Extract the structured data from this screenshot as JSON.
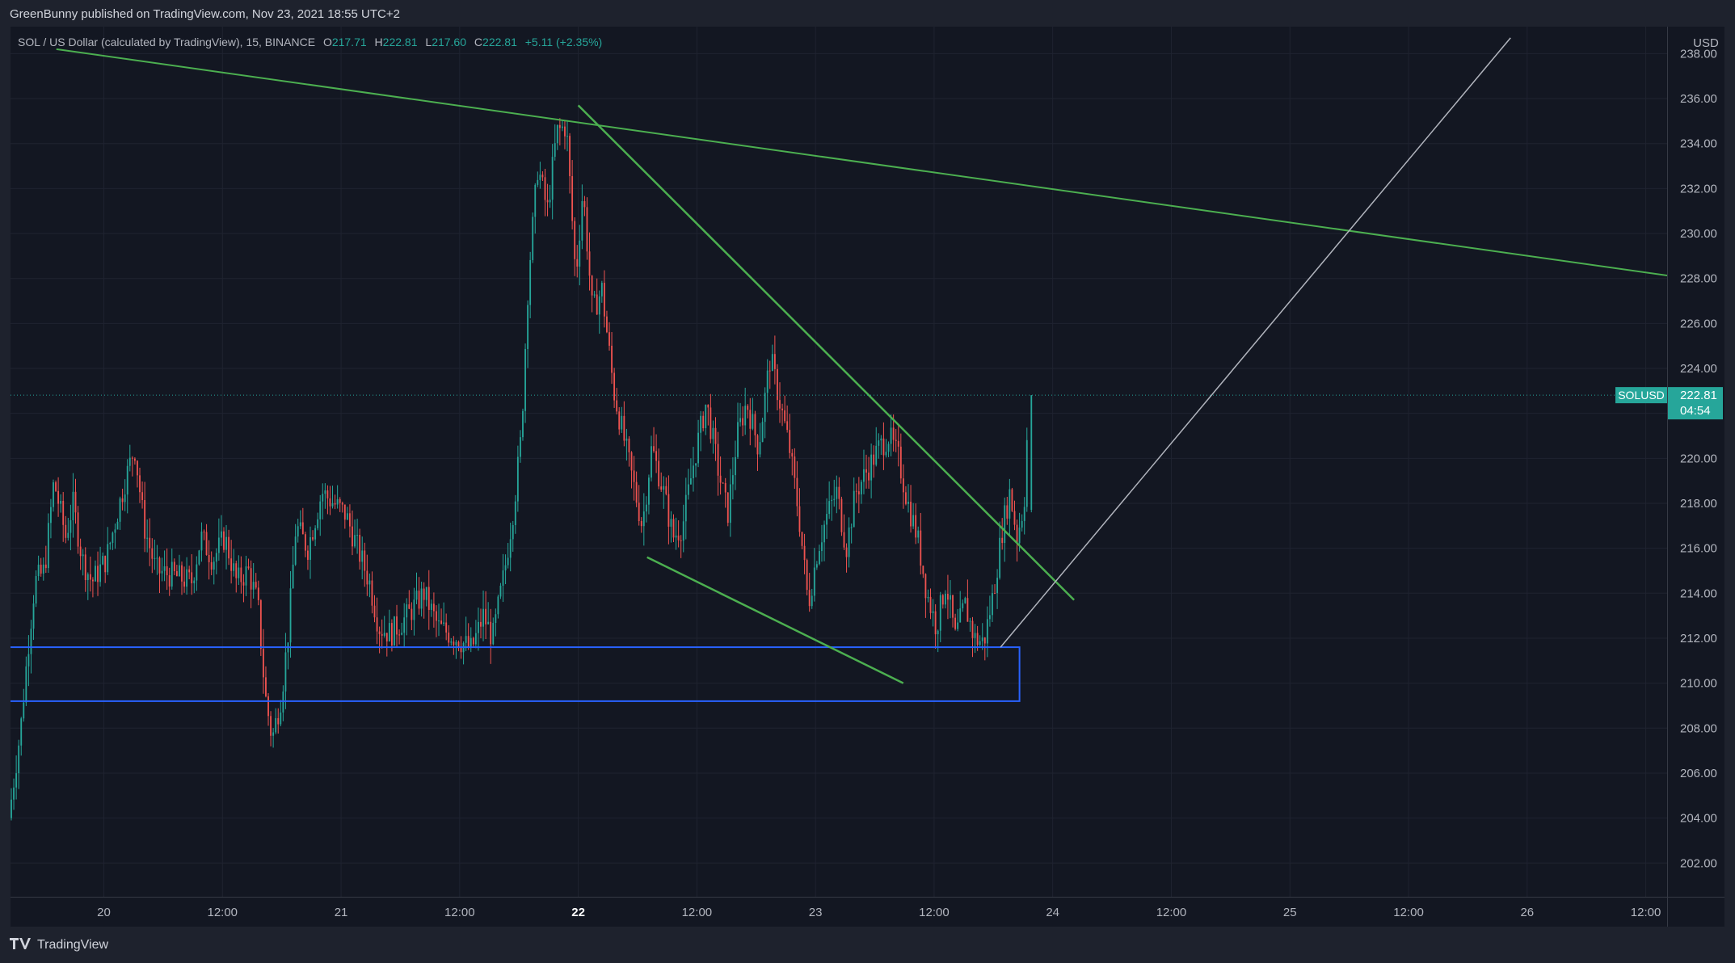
{
  "header": {
    "published_line": "GreenBunny published on TradingView.com, Nov 23, 2021 18:55 UTC+2"
  },
  "legend": {
    "symbol_text": "SOL / US Dollar (calculated by TradingView), 15, BINANCE",
    "open_label": "O",
    "open": "217.71",
    "high_label": "H",
    "high": "222.81",
    "low_label": "L",
    "low": "217.60",
    "close_label": "C",
    "close": "222.81",
    "change": "+5.11 (+2.35%)"
  },
  "footer": {
    "brand_icon": "tradingview-logo-icon",
    "brand": "TradingView"
  },
  "colors": {
    "up": "#26a69a",
    "down": "#ef5350",
    "trendline": "#4caf50",
    "support_box": "#2962ff",
    "projection": "#b2b5be",
    "background": "#131722"
  },
  "chart_data": {
    "type": "candlestick",
    "symbol": "SOLUSD",
    "currency": "USD",
    "interval": "15",
    "y_range": [
      200.5,
      239.2
    ],
    "y_ticks": [
      "238.00",
      "236.00",
      "234.00",
      "232.00",
      "230.00",
      "228.00",
      "226.00",
      "224.00",
      "222.00",
      "220.00",
      "218.00",
      "216.00",
      "214.00",
      "212.00",
      "210.00",
      "208.00",
      "206.00",
      "204.00",
      "202.00"
    ],
    "x_ticks": [
      {
        "label": "20",
        "day": 20.0,
        "bold": false
      },
      {
        "label": "12:00",
        "day": 20.5,
        "bold": false
      },
      {
        "label": "21",
        "day": 21.0,
        "bold": false
      },
      {
        "label": "12:00",
        "day": 21.5,
        "bold": false
      },
      {
        "label": "22",
        "day": 22.0,
        "bold": true
      },
      {
        "label": "12:00",
        "day": 22.5,
        "bold": false
      },
      {
        "label": "23",
        "day": 23.0,
        "bold": false
      },
      {
        "label": "12:00",
        "day": 23.5,
        "bold": false
      },
      {
        "label": "24",
        "day": 24.0,
        "bold": false
      },
      {
        "label": "12:00",
        "day": 24.5,
        "bold": false
      },
      {
        "label": "25",
        "day": 25.0,
        "bold": false
      },
      {
        "label": "12:00",
        "day": 25.5,
        "bold": false
      },
      {
        "label": "26",
        "day": 26.0,
        "bold": false
      },
      {
        "label": "12:00",
        "day": 26.5,
        "bold": false
      }
    ],
    "x_range_days": [
      19.61,
      26.59
    ],
    "price_keypoints": [
      {
        "day": 19.61,
        "price": 204.0
      },
      {
        "day": 19.66,
        "price": 208.0
      },
      {
        "day": 19.69,
        "price": 211.5
      },
      {
        "day": 19.72,
        "price": 214.5
      },
      {
        "day": 19.76,
        "price": 215.0
      },
      {
        "day": 19.8,
        "price": 219.0
      },
      {
        "day": 19.85,
        "price": 216.5
      },
      {
        "day": 19.88,
        "price": 218.0
      },
      {
        "day": 19.92,
        "price": 215.5
      },
      {
        "day": 19.96,
        "price": 214.5
      },
      {
        "day": 20.02,
        "price": 215.5
      },
      {
        "day": 20.1,
        "price": 219.0
      },
      {
        "day": 20.14,
        "price": 220.5
      },
      {
        "day": 20.18,
        "price": 217.0
      },
      {
        "day": 20.23,
        "price": 215.0
      },
      {
        "day": 20.3,
        "price": 214.8
      },
      {
        "day": 20.38,
        "price": 214.5
      },
      {
        "day": 20.42,
        "price": 216.5
      },
      {
        "day": 20.47,
        "price": 215.5
      },
      {
        "day": 20.52,
        "price": 216.5
      },
      {
        "day": 20.57,
        "price": 214.5
      },
      {
        "day": 20.62,
        "price": 215.0
      },
      {
        "day": 20.66,
        "price": 213.5
      },
      {
        "day": 20.69,
        "price": 209.5
      },
      {
        "day": 20.72,
        "price": 207.5
      },
      {
        "day": 20.76,
        "price": 209.5
      },
      {
        "day": 20.79,
        "price": 212.5
      },
      {
        "day": 20.82,
        "price": 217.0
      },
      {
        "day": 20.87,
        "price": 216.0
      },
      {
        "day": 20.93,
        "price": 218.5
      },
      {
        "day": 20.98,
        "price": 218.0
      },
      {
        "day": 21.03,
        "price": 217.5
      },
      {
        "day": 21.08,
        "price": 216.0
      },
      {
        "day": 21.13,
        "price": 214.5
      },
      {
        "day": 21.17,
        "price": 212.5
      },
      {
        "day": 21.22,
        "price": 212.2
      },
      {
        "day": 21.29,
        "price": 213.0
      },
      {
        "day": 21.36,
        "price": 214.0
      },
      {
        "day": 21.42,
        "price": 212.5
      },
      {
        "day": 21.5,
        "price": 212.0
      },
      {
        "day": 21.56,
        "price": 211.5
      },
      {
        "day": 21.61,
        "price": 213.0
      },
      {
        "day": 21.65,
        "price": 212.0
      },
      {
        "day": 21.7,
        "price": 215.0
      },
      {
        "day": 21.74,
        "price": 218.0
      },
      {
        "day": 21.77,
        "price": 221.0
      },
      {
        "day": 21.8,
        "price": 228.0
      },
      {
        "day": 21.84,
        "price": 233.0
      },
      {
        "day": 21.88,
        "price": 231.0
      },
      {
        "day": 21.92,
        "price": 234.5
      },
      {
        "day": 21.96,
        "price": 234.8
      },
      {
        "day": 22.0,
        "price": 228.0
      },
      {
        "day": 22.03,
        "price": 232.0
      },
      {
        "day": 22.07,
        "price": 226.5
      },
      {
        "day": 22.11,
        "price": 227.5
      },
      {
        "day": 22.16,
        "price": 223.0
      },
      {
        "day": 22.2,
        "price": 221.0
      },
      {
        "day": 22.24,
        "price": 219.0
      },
      {
        "day": 22.28,
        "price": 217.0
      },
      {
        "day": 22.32,
        "price": 220.5
      },
      {
        "day": 22.37,
        "price": 218.5
      },
      {
        "day": 22.41,
        "price": 216.5
      },
      {
        "day": 22.45,
        "price": 217.0
      },
      {
        "day": 22.5,
        "price": 220.0
      },
      {
        "day": 22.55,
        "price": 222.5
      },
      {
        "day": 22.6,
        "price": 219.5
      },
      {
        "day": 22.64,
        "price": 217.5
      },
      {
        "day": 22.68,
        "price": 221.0
      },
      {
        "day": 22.72,
        "price": 222.5
      },
      {
        "day": 22.77,
        "price": 220.5
      },
      {
        "day": 22.82,
        "price": 224.5
      },
      {
        "day": 22.86,
        "price": 222.5
      },
      {
        "day": 22.9,
        "price": 220.5
      },
      {
        "day": 22.94,
        "price": 217.5
      },
      {
        "day": 22.98,
        "price": 213.5
      },
      {
        "day": 23.02,
        "price": 216.0
      },
      {
        "day": 23.06,
        "price": 217.5
      },
      {
        "day": 23.1,
        "price": 218.5
      },
      {
        "day": 23.14,
        "price": 216.0
      },
      {
        "day": 23.18,
        "price": 218.5
      },
      {
        "day": 23.23,
        "price": 219.5
      },
      {
        "day": 23.28,
        "price": 220.5
      },
      {
        "day": 23.32,
        "price": 221.0
      },
      {
        "day": 23.36,
        "price": 220.0
      },
      {
        "day": 23.4,
        "price": 218.0
      },
      {
        "day": 23.44,
        "price": 216.5
      },
      {
        "day": 23.48,
        "price": 214.0
      },
      {
        "day": 23.52,
        "price": 212.5
      },
      {
        "day": 23.56,
        "price": 214.5
      },
      {
        "day": 23.6,
        "price": 212.0
      },
      {
        "day": 23.64,
        "price": 213.5
      },
      {
        "day": 23.68,
        "price": 212.0
      },
      {
        "day": 23.72,
        "price": 211.8
      },
      {
        "day": 23.76,
        "price": 214.0
      },
      {
        "day": 23.8,
        "price": 217.0
      },
      {
        "day": 23.83,
        "price": 218.5
      },
      {
        "day": 23.86,
        "price": 216.5
      },
      {
        "day": 23.89,
        "price": 218.0
      },
      {
        "day": 23.91,
        "price": 222.81
      }
    ],
    "annotations": {
      "support_zone": {
        "day_start": 19.61,
        "day_end": 23.86,
        "price_top": 211.6,
        "price_bottom": 209.2
      },
      "upper_trendline": {
        "day1": 19.8,
        "price1": 238.2,
        "day2": 26.68,
        "price2": 228.0
      },
      "falling_wedge_top": {
        "day1": 22.0,
        "price1": 235.7,
        "day2": 24.09,
        "price2": 213.7
      },
      "falling_wedge_bottom": {
        "day1": 22.29,
        "price1": 215.6,
        "day2": 23.37,
        "price2": 210.0
      },
      "projection_line": {
        "day1": 23.78,
        "price1": 211.6,
        "day2": 25.93,
        "price2": 238.7
      }
    },
    "last_price": {
      "label": "SOLUSD",
      "value": "222.81",
      "countdown": "04:54",
      "price": 222.81
    }
  }
}
